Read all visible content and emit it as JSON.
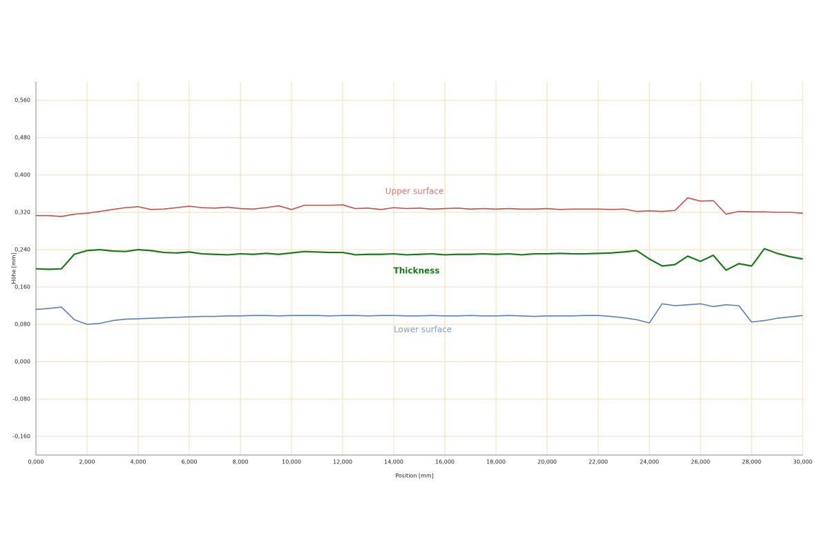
{
  "chart_data": {
    "type": "line",
    "x_label": "Position [mm]",
    "y_label": "Höhe [mm]",
    "xlim": [
      0,
      30
    ],
    "ylim": [
      -0.2,
      0.6
    ],
    "grid": true,
    "xticks": [
      {
        "value": 0,
        "label": "0,000"
      },
      {
        "value": 2,
        "label": "2,000"
      },
      {
        "value": 4,
        "label": "4,000"
      },
      {
        "value": 6,
        "label": "6,000"
      },
      {
        "value": 8,
        "label": "8,000"
      },
      {
        "value": 10,
        "label": "10,000"
      },
      {
        "value": 12,
        "label": "12,000"
      },
      {
        "value": 14,
        "label": "14,000"
      },
      {
        "value": 16,
        "label": "16,000"
      },
      {
        "value": 18,
        "label": "18,000"
      },
      {
        "value": 20,
        "label": "20,000"
      },
      {
        "value": 22,
        "label": "22,000"
      },
      {
        "value": 24,
        "label": "24,000"
      },
      {
        "value": 26,
        "label": "26,000"
      },
      {
        "value": 28,
        "label": "28,000"
      },
      {
        "value": 30,
        "label": "30,000"
      }
    ],
    "yticks": [
      {
        "value": -0.16,
        "label": "-0,160"
      },
      {
        "value": -0.08,
        "label": "-0,080"
      },
      {
        "value": 0,
        "label": "0,000"
      },
      {
        "value": 0.08,
        "label": "0,080"
      },
      {
        "value": 0.16,
        "label": "0,160"
      },
      {
        "value": 0.24,
        "label": "0,240"
      },
      {
        "value": 0.32,
        "label": "0,320"
      },
      {
        "value": 0.4,
        "label": "0,400"
      },
      {
        "value": 0.48,
        "label": "0,480"
      },
      {
        "value": 0.56,
        "label": "0,560"
      }
    ],
    "x": [
      0,
      0.5,
      1,
      1.5,
      2,
      2.5,
      3,
      3.5,
      4,
      4.5,
      5,
      5.5,
      6,
      6.5,
      7,
      7.5,
      8,
      8.5,
      9,
      9.5,
      10,
      10.5,
      11,
      11.5,
      12,
      12.5,
      13,
      13.5,
      14,
      14.5,
      15,
      15.5,
      16,
      16.5,
      17,
      17.5,
      18,
      18.5,
      19,
      19.5,
      20,
      20.5,
      21,
      21.5,
      22,
      22.5,
      23,
      23.5,
      24,
      24.5,
      25,
      25.5,
      26,
      26.5,
      27,
      27.5,
      28,
      28.5,
      29,
      29.5,
      30
    ],
    "series": [
      {
        "name": "Upper surface",
        "color": "#c0504d",
        "values": [
          0.313,
          0.313,
          0.311,
          0.316,
          0.318,
          0.322,
          0.326,
          0.33,
          0.332,
          0.326,
          0.327,
          0.33,
          0.333,
          0.33,
          0.329,
          0.331,
          0.328,
          0.327,
          0.33,
          0.334,
          0.326,
          0.335,
          0.335,
          0.335,
          0.336,
          0.328,
          0.329,
          0.326,
          0.33,
          0.328,
          0.329,
          0.327,
          0.328,
          0.329,
          0.327,
          0.328,
          0.327,
          0.328,
          0.327,
          0.327,
          0.328,
          0.326,
          0.327,
          0.327,
          0.327,
          0.326,
          0.327,
          0.322,
          0.323,
          0.322,
          0.324,
          0.351,
          0.344,
          0.345,
          0.316,
          0.322,
          0.321,
          0.321,
          0.32,
          0.32,
          0.318
        ]
      },
      {
        "name": "Thickness",
        "color": "#1a7a1a",
        "values": [
          0.199,
          0.198,
          0.199,
          0.23,
          0.238,
          0.24,
          0.237,
          0.236,
          0.24,
          0.238,
          0.234,
          0.233,
          0.235,
          0.231,
          0.23,
          0.229,
          0.231,
          0.23,
          0.232,
          0.23,
          0.233,
          0.236,
          0.235,
          0.234,
          0.234,
          0.229,
          0.23,
          0.23,
          0.231,
          0.229,
          0.23,
          0.231,
          0.229,
          0.23,
          0.23,
          0.231,
          0.23,
          0.231,
          0.229,
          0.231,
          0.231,
          0.232,
          0.231,
          0.231,
          0.232,
          0.233,
          0.235,
          0.238,
          0.22,
          0.205,
          0.208,
          0.226,
          0.215,
          0.228,
          0.196,
          0.21,
          0.205,
          0.242,
          0.232,
          0.225,
          0.22
        ]
      },
      {
        "name": "Lower surface",
        "color": "#5b7faf",
        "values": [
          0.112,
          0.114,
          0.117,
          0.09,
          0.08,
          0.082,
          0.088,
          0.091,
          0.092,
          0.093,
          0.094,
          0.095,
          0.096,
          0.097,
          0.097,
          0.098,
          0.098,
          0.099,
          0.099,
          0.098,
          0.099,
          0.099,
          0.099,
          0.098,
          0.099,
          0.099,
          0.098,
          0.099,
          0.099,
          0.098,
          0.098,
          0.099,
          0.098,
          0.098,
          0.099,
          0.098,
          0.098,
          0.099,
          0.098,
          0.097,
          0.098,
          0.098,
          0.098,
          0.099,
          0.099,
          0.097,
          0.094,
          0.09,
          0.083,
          0.124,
          0.12,
          0.122,
          0.124,
          0.118,
          0.122,
          0.12,
          0.085,
          0.088,
          0.093,
          0.096,
          0.099
        ]
      }
    ]
  }
}
